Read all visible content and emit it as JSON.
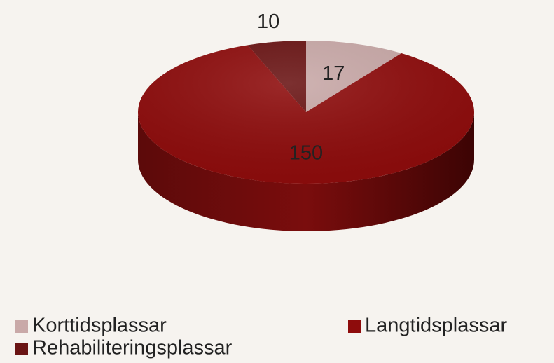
{
  "chart_data": {
    "type": "pie",
    "categories": [
      "Korttidsplassar",
      "Langtidsplassar",
      "Rehabiliteringsplassar"
    ],
    "values": [
      17,
      150,
      10
    ],
    "colors": [
      "#c9a9a8",
      "#8e0c0c",
      "#6a1414"
    ],
    "legend": "bottom"
  }
}
